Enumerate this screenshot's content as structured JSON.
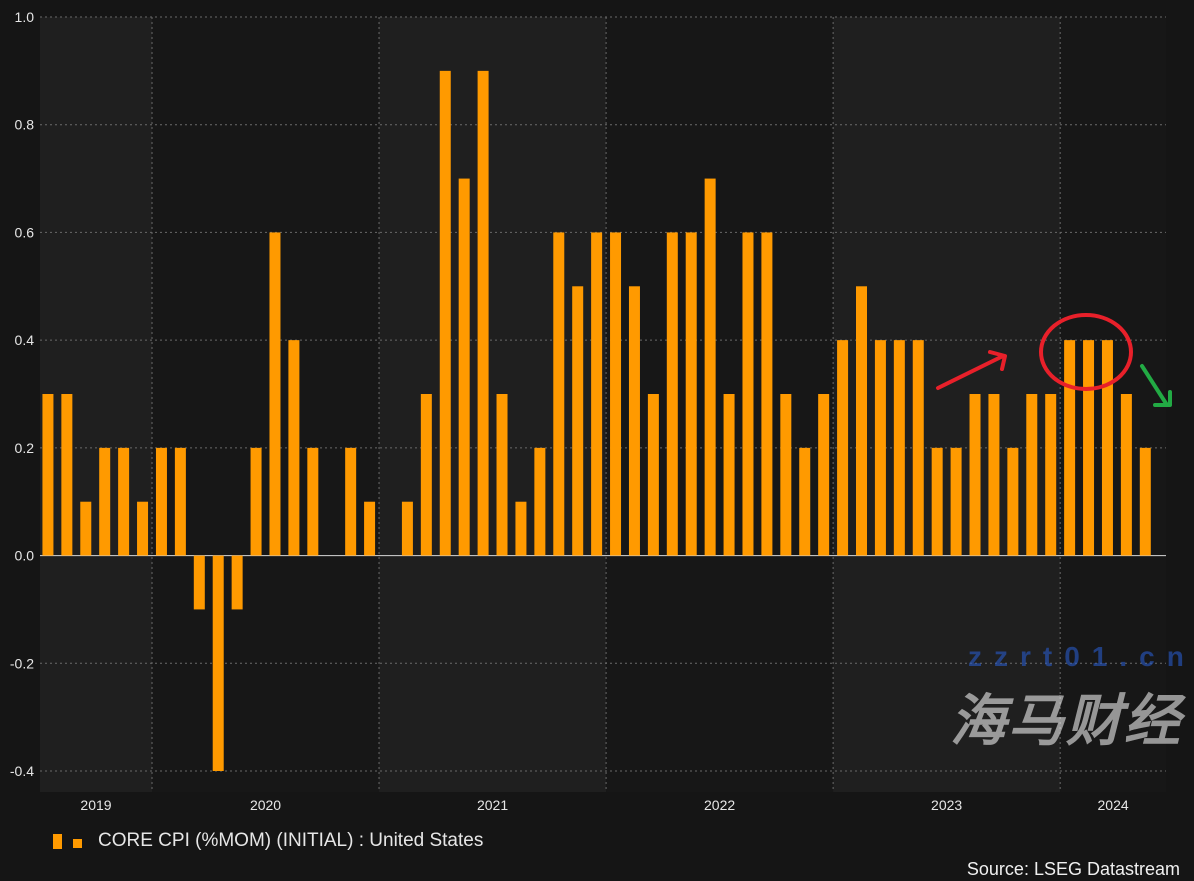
{
  "chart_data": {
    "type": "bar",
    "title": "",
    "xlabel": "",
    "ylabel": "",
    "ylim": [
      -0.4,
      1.0
    ],
    "yticks": [
      1.0,
      0.8,
      0.6,
      0.4,
      0.2,
      0.0,
      -0.2,
      -0.4
    ],
    "ytick_labels": [
      "1.0",
      "0.8",
      "0.6",
      "0.4",
      "0.2",
      "0.0",
      "-0.2",
      "-0.4"
    ],
    "year_labels": [
      "2019",
      "2020",
      "2021",
      "2022",
      "2023",
      "2024"
    ],
    "grid": true,
    "legend_position": "bottom-left",
    "series": [
      {
        "name": "CORE CPI (%MOM) (INITIAL) : United States",
        "color": "#ff9a00",
        "start": "2019-07",
        "values": [
          0.3,
          0.3,
          0.1,
          0.2,
          0.2,
          0.1,
          0.2,
          0.2,
          -0.1,
          -0.4,
          -0.1,
          0.2,
          0.6,
          0.4,
          0.2,
          0.0,
          0.2,
          0.1,
          0.0,
          0.1,
          0.3,
          0.9,
          0.7,
          0.9,
          0.3,
          0.1,
          0.2,
          0.6,
          0.5,
          0.6,
          0.6,
          0.5,
          0.3,
          0.6,
          0.6,
          0.7,
          0.3,
          0.6,
          0.6,
          0.3,
          0.2,
          0.3,
          0.4,
          0.5,
          0.4,
          0.4,
          0.4,
          0.2,
          0.2,
          0.3,
          0.3,
          0.2,
          0.3,
          0.3,
          0.4,
          0.4,
          0.4,
          0.3,
          0.2
        ]
      }
    ],
    "annotations": {
      "rise_arrow_color": "#e8202a",
      "highlight_circle_color": "#e8202a",
      "fall_arrow_color": "#22aa44"
    }
  },
  "source": "Source: LSEG Datastream",
  "watermark": {
    "text": "海马财经",
    "url": "zzrt01.cn"
  }
}
